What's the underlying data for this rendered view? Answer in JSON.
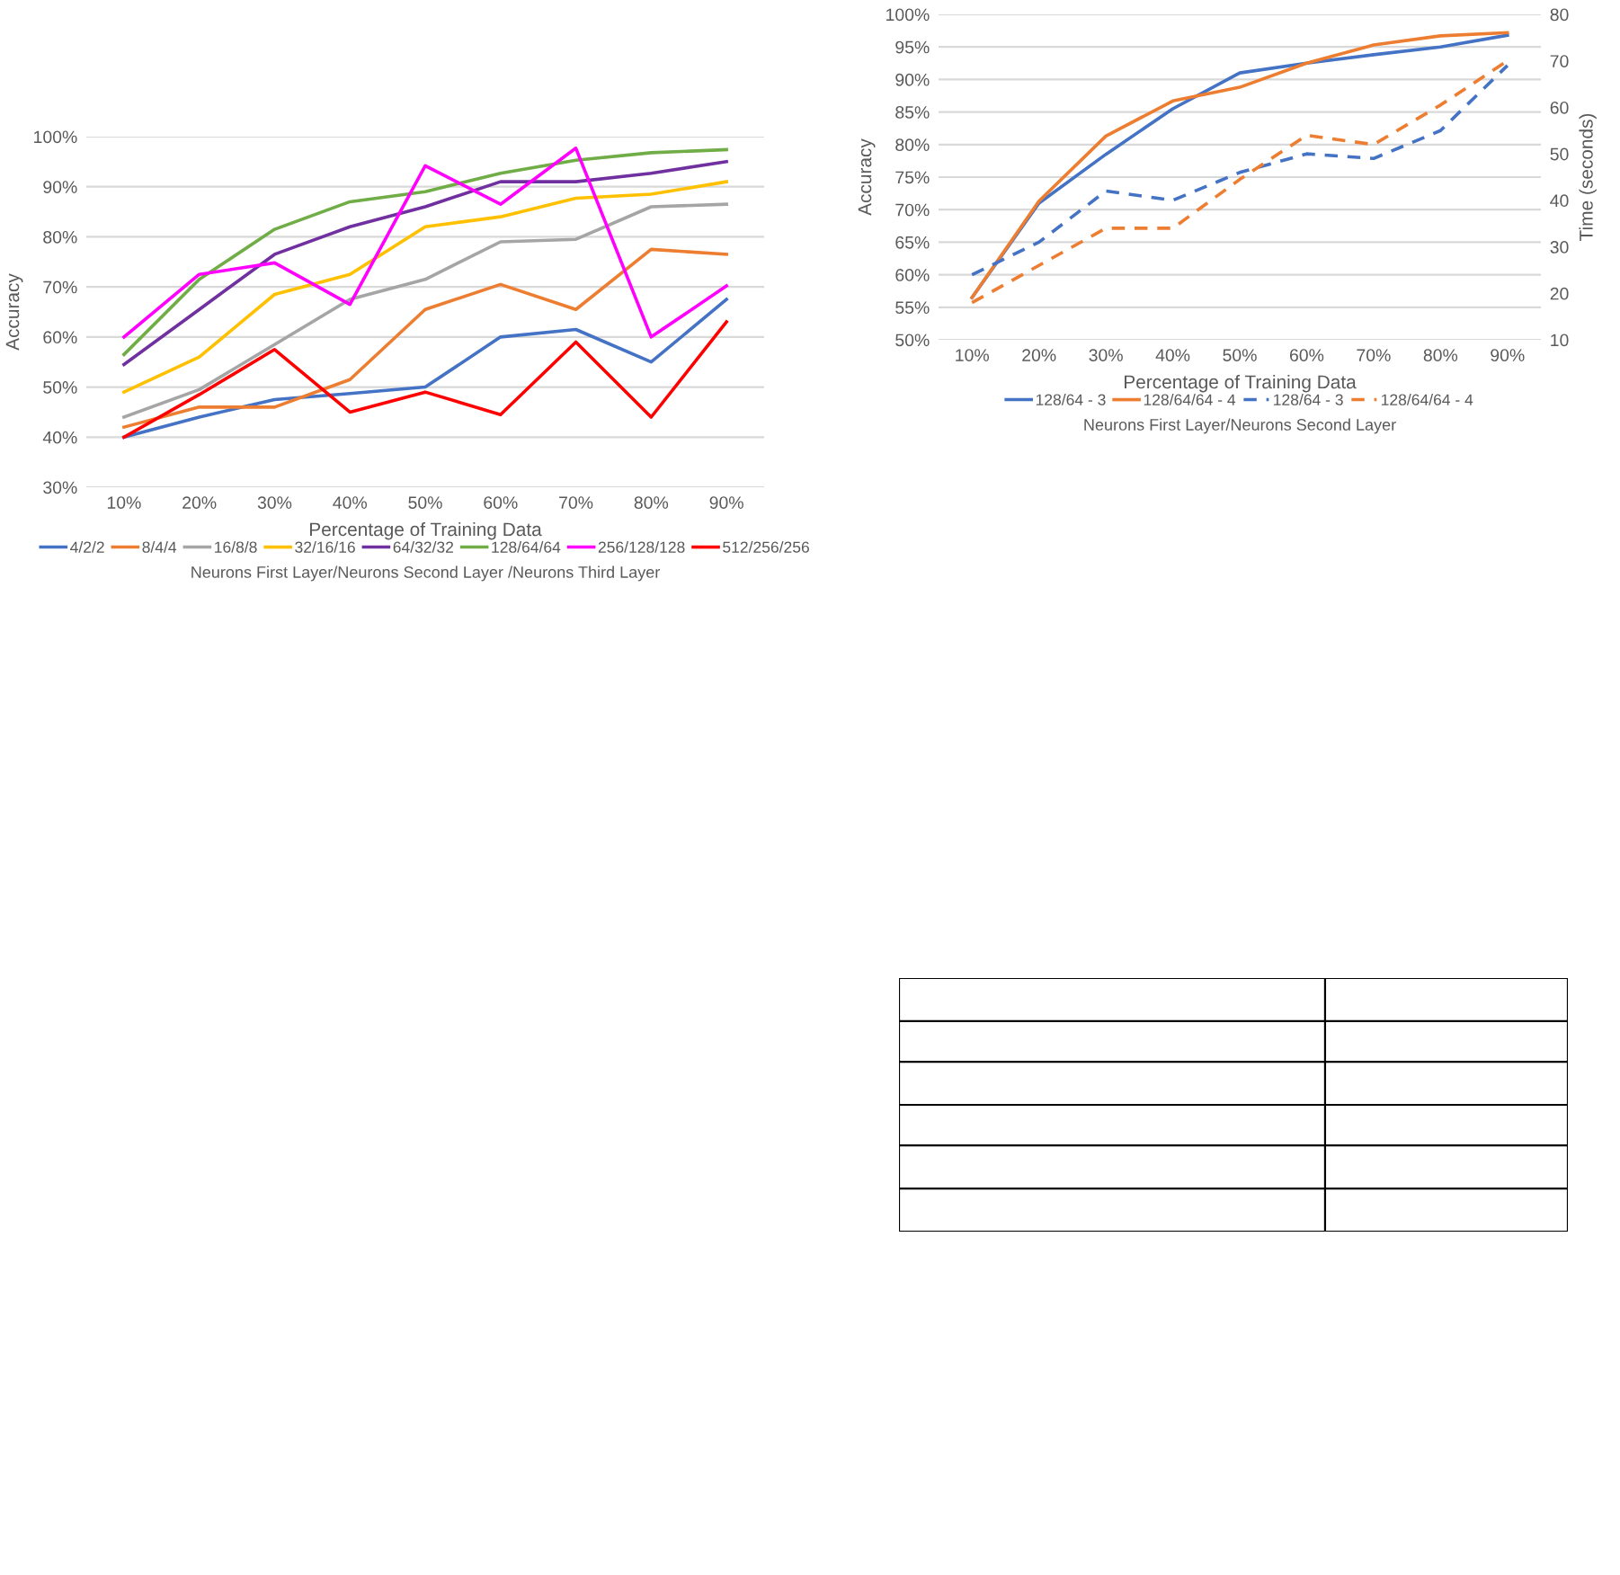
{
  "chart_data": [
    {
      "type": "line",
      "xlabel": "Percentage of Training Data",
      "ylabel": "Accuracy",
      "legend_title": "Neurons First Layer/Neurons Second Layer /Neurons Third Layer",
      "categories": [
        "10%",
        "20%",
        "30%",
        "40%",
        "50%",
        "60%",
        "70%",
        "80%",
        "90%"
      ],
      "ylim": [
        30,
        100
      ],
      "yticks": [
        {
          "value": 30,
          "label": "30%"
        },
        {
          "value": 40,
          "label": "40%"
        },
        {
          "value": 50,
          "label": "50%"
        },
        {
          "value": 60,
          "label": "60%"
        },
        {
          "value": 70,
          "label": "70%"
        },
        {
          "value": 80,
          "label": "80%"
        },
        {
          "value": 90,
          "label": "90%"
        },
        {
          "value": 100,
          "label": "100%"
        }
      ],
      "grid": "y",
      "legend": "bottom",
      "marker": "none",
      "line_style": "solid",
      "series": [
        {
          "name": "4/2/2",
          "color": "#4472c4",
          "values": [
            40,
            44,
            47.5,
            48.7,
            50,
            60,
            61.5,
            55,
            67.5
          ]
        },
        {
          "name": "8/4/4",
          "color": "#ed7d31",
          "values": [
            42,
            46,
            46,
            51.5,
            65.5,
            70.5,
            65.5,
            77.5,
            76.5
          ]
        },
        {
          "name": "16/8/8",
          "color": "#a5a5a5",
          "values": [
            44,
            49.5,
            58.5,
            67.5,
            71.5,
            79,
            79.5,
            86,
            86.5
          ]
        },
        {
          "name": "32/16/16",
          "color": "#ffc000",
          "values": [
            49,
            56,
            68.5,
            72.5,
            82,
            84,
            87.7,
            88.5,
            91
          ]
        },
        {
          "name": "64/32/32",
          "color": "#7030a0",
          "values": [
            54.5,
            65.5,
            76.5,
            82,
            86,
            91,
            91,
            92.7,
            95
          ]
        },
        {
          "name": "128/64/64",
          "color": "#70ad47",
          "values": [
            56.5,
            71.5,
            81.5,
            87,
            89,
            92.7,
            95.3,
            96.8,
            97.4
          ]
        },
        {
          "name": "256/128/128",
          "color": "#ff00ff",
          "values": [
            60,
            72.5,
            74.8,
            66.5,
            94.2,
            86.5,
            97.7,
            60,
            70.2
          ]
        },
        {
          "name": "512/256/256",
          "color": "#ff0000",
          "values": [
            40,
            48.5,
            57.5,
            45,
            49,
            44.5,
            59,
            44,
            63
          ]
        }
      ]
    },
    {
      "type": "line",
      "xlabel": "Percentage of Training Data",
      "ylabel": "Accuracy",
      "y2label": "Time (seconds)",
      "legend_title": "Neurons First Layer/Neurons Second Layer",
      "categories": [
        "10%",
        "20%",
        "30%",
        "40%",
        "50%",
        "60%",
        "70%",
        "80%",
        "90%"
      ],
      "ylim": [
        50,
        100
      ],
      "yticks": [
        {
          "value": 50,
          "label": "50%"
        },
        {
          "value": 55,
          "label": "55%"
        },
        {
          "value": 60,
          "label": "60%"
        },
        {
          "value": 65,
          "label": "65%"
        },
        {
          "value": 70,
          "label": "70%"
        },
        {
          "value": 75,
          "label": "75%"
        },
        {
          "value": 80,
          "label": "80%"
        },
        {
          "value": 85,
          "label": "85%"
        },
        {
          "value": 90,
          "label": "90%"
        },
        {
          "value": 95,
          "label": "95%"
        },
        {
          "value": 100,
          "label": "100%"
        }
      ],
      "y2lim": [
        10,
        80
      ],
      "y2ticks": [
        10,
        20,
        30,
        40,
        50,
        60,
        70,
        80
      ],
      "grid": "y",
      "legend": "bottom",
      "marker": "none",
      "series": [
        {
          "name": "128/64 - 3",
          "color": "#4472c4",
          "line_style": "solid",
          "values": [
            56.5,
            71,
            78.5,
            85.5,
            91,
            92.5,
            93.8,
            95,
            96.8
          ]
        },
        {
          "name": "128/64/64 - 4",
          "color": "#ed7d31",
          "line_style": "solid",
          "values": [
            56.5,
            71.3,
            81.3,
            86.7,
            88.8,
            92.5,
            95.3,
            96.7,
            97.2
          ]
        },
        {
          "name": "128/64 - 3",
          "color": "#4472c4",
          "line_style": "dashed",
          "axis": "y2",
          "values": [
            24,
            31,
            42,
            40,
            46,
            50,
            49,
            55,
            69
          ]
        },
        {
          "name": "128/64/64 - 4",
          "color": "#ed7d31",
          "line_style": "dashed",
          "axis": "y2",
          "values": [
            18,
            26,
            34,
            34,
            44.5,
            54,
            52,
            60.5,
            70
          ]
        }
      ]
    }
  ]
}
